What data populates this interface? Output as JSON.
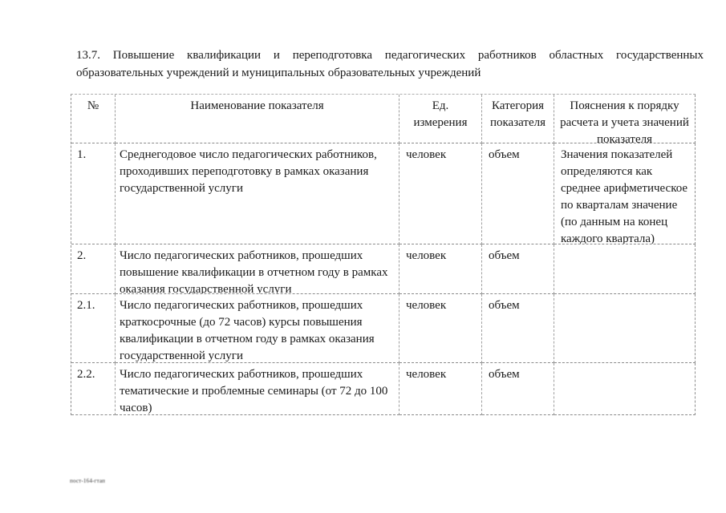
{
  "document": {
    "heading": {
      "line1": "13.7. Повышение квалификации и переподготовка педагогических работников областных государственных",
      "line2": "образовательных учреждений и муниципальных образовательных учреждений"
    },
    "footer_mark": "пост-164-гтап"
  },
  "table": {
    "headers": [
      "№",
      "Наименование показателя",
      "Ед. измерения",
      "Категория показателя",
      "Пояснения к порядку расчета и учета значений показателя"
    ],
    "rows": [
      {
        "num": "1.",
        "name": "Среднегодовое число педагогических работников, проходивших переподготовку в рамках оказания государственной услуги",
        "unit": "человек",
        "category": "объем",
        "explanation": "Значения показателей определяются как среднее арифметическое по кварталам значение (по данным на конец каждого квартала)"
      },
      {
        "num": "2.",
        "name": "Число педагогических работников, прошедших повышение квалификации в отчетном году в рамках оказания государственной услуги",
        "unit": "человек",
        "category": "объем",
        "explanation": ""
      },
      {
        "num": "2.1.",
        "name": "Число педагогических работников, прошедших краткосрочные (до 72 часов) курсы повышения квалификации в отчетном году в рамках оказания государственной услуги",
        "unit": "человек",
        "category": "объем",
        "explanation": ""
      },
      {
        "num": "2.2.",
        "name": "Число педагогических работников, прошедших тематические и проблемные семинары (от 72 до 100 часов)",
        "unit": "человек",
        "category": "объем",
        "explanation": ""
      }
    ]
  }
}
